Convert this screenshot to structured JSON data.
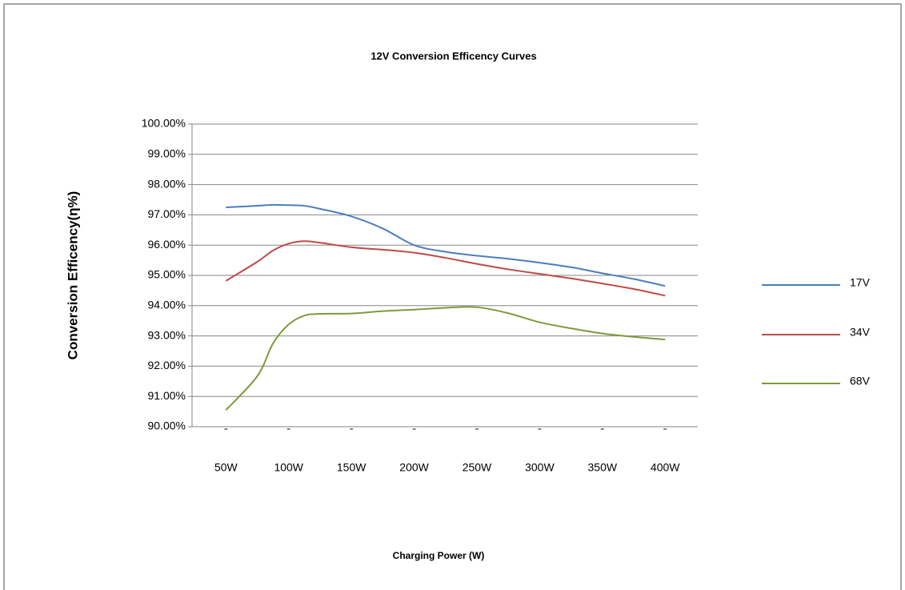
{
  "chart_data": {
    "type": "line",
    "title": "12V  Conversion Efficency Curves",
    "x_label": "Charging  Power (W)",
    "y_label": "Conversion Efficency(η%)",
    "x": [
      50,
      75,
      87.5,
      100,
      112.5,
      125,
      150,
      175,
      200,
      225,
      250,
      275,
      300,
      325,
      350,
      375,
      400
    ],
    "series": [
      {
        "name": "17V",
        "color": "#4a7ebb",
        "values": [
          97.25,
          97.3,
          97.33,
          97.32,
          97.3,
          97.2,
          96.95,
          96.55,
          96.0,
          95.78,
          95.65,
          95.55,
          95.42,
          95.27,
          95.07,
          94.88,
          94.65
        ]
      },
      {
        "name": "34V",
        "color": "#be4b48",
        "values": [
          94.82,
          95.45,
          95.82,
          96.05,
          96.13,
          96.08,
          95.93,
          95.85,
          95.75,
          95.58,
          95.38,
          95.2,
          95.05,
          94.9,
          94.73,
          94.55,
          94.33
        ]
      },
      {
        "name": "68V",
        "color": "#7e9a3c",
        "values": [
          90.55,
          91.67,
          92.75,
          93.38,
          93.67,
          93.73,
          93.74,
          93.82,
          93.87,
          93.93,
          93.95,
          93.75,
          93.45,
          93.25,
          93.08,
          92.97,
          92.88
        ]
      }
    ],
    "xlim": [
      23,
      426
    ],
    "xticks": [
      {
        "value": 50,
        "label": "50W"
      },
      {
        "value": 100,
        "label": "100W"
      },
      {
        "value": 150,
        "label": "150W"
      },
      {
        "value": 200,
        "label": "200W"
      },
      {
        "value": 250,
        "label": "250W"
      },
      {
        "value": 300,
        "label": "300W"
      },
      {
        "value": 350,
        "label": "350W"
      },
      {
        "value": 400,
        "label": "400W"
      }
    ],
    "ylim": [
      90,
      100
    ],
    "yticks": [
      {
        "value": 90,
        "label": "90.00%"
      },
      {
        "value": 91,
        "label": "91.00%"
      },
      {
        "value": 92,
        "label": "92.00%"
      },
      {
        "value": 93,
        "label": "93.00%"
      },
      {
        "value": 94,
        "label": "94.00%"
      },
      {
        "value": 95,
        "label": "95.00%"
      },
      {
        "value": 96,
        "label": "96.00%"
      },
      {
        "value": 97,
        "label": "97.00%"
      },
      {
        "value": 98,
        "label": "98.00%"
      },
      {
        "value": 99,
        "label": "99.00%"
      },
      {
        "value": 100,
        "label": "100.00%"
      }
    ],
    "grid": true,
    "legend": "right"
  }
}
